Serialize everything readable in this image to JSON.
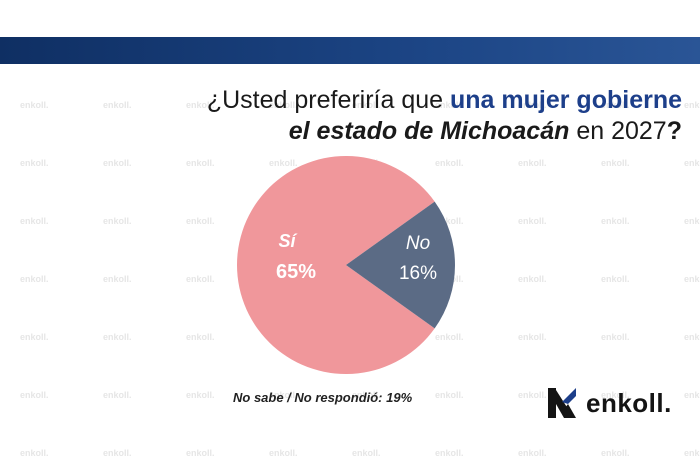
{
  "title": {
    "line1_prefix": "¿Usted preferiría que ",
    "line1_highlight": "una mujer gobierne",
    "line2_italic": "el estado de Michoacán",
    "line2_suffix": " en 2027",
    "line2_qmark": "?"
  },
  "chart_data": {
    "type": "pie",
    "slices": [
      {
        "label": "Sí",
        "value": 65,
        "value_label": "65%",
        "color": "#f0979b"
      },
      {
        "label": "No",
        "value": 16,
        "value_label": "16%",
        "color": "#5b6b85"
      }
    ],
    "footnote": "No sabe / No respondió: 19%"
  },
  "brand": {
    "name": "enkoll.",
    "watermark": "enkoll.",
    "colors": {
      "band": "#1c4585",
      "highlight": "#1d3f8a",
      "text": "#1a1a1a"
    },
    "logo_icon": "enkoll-logo-icon"
  }
}
